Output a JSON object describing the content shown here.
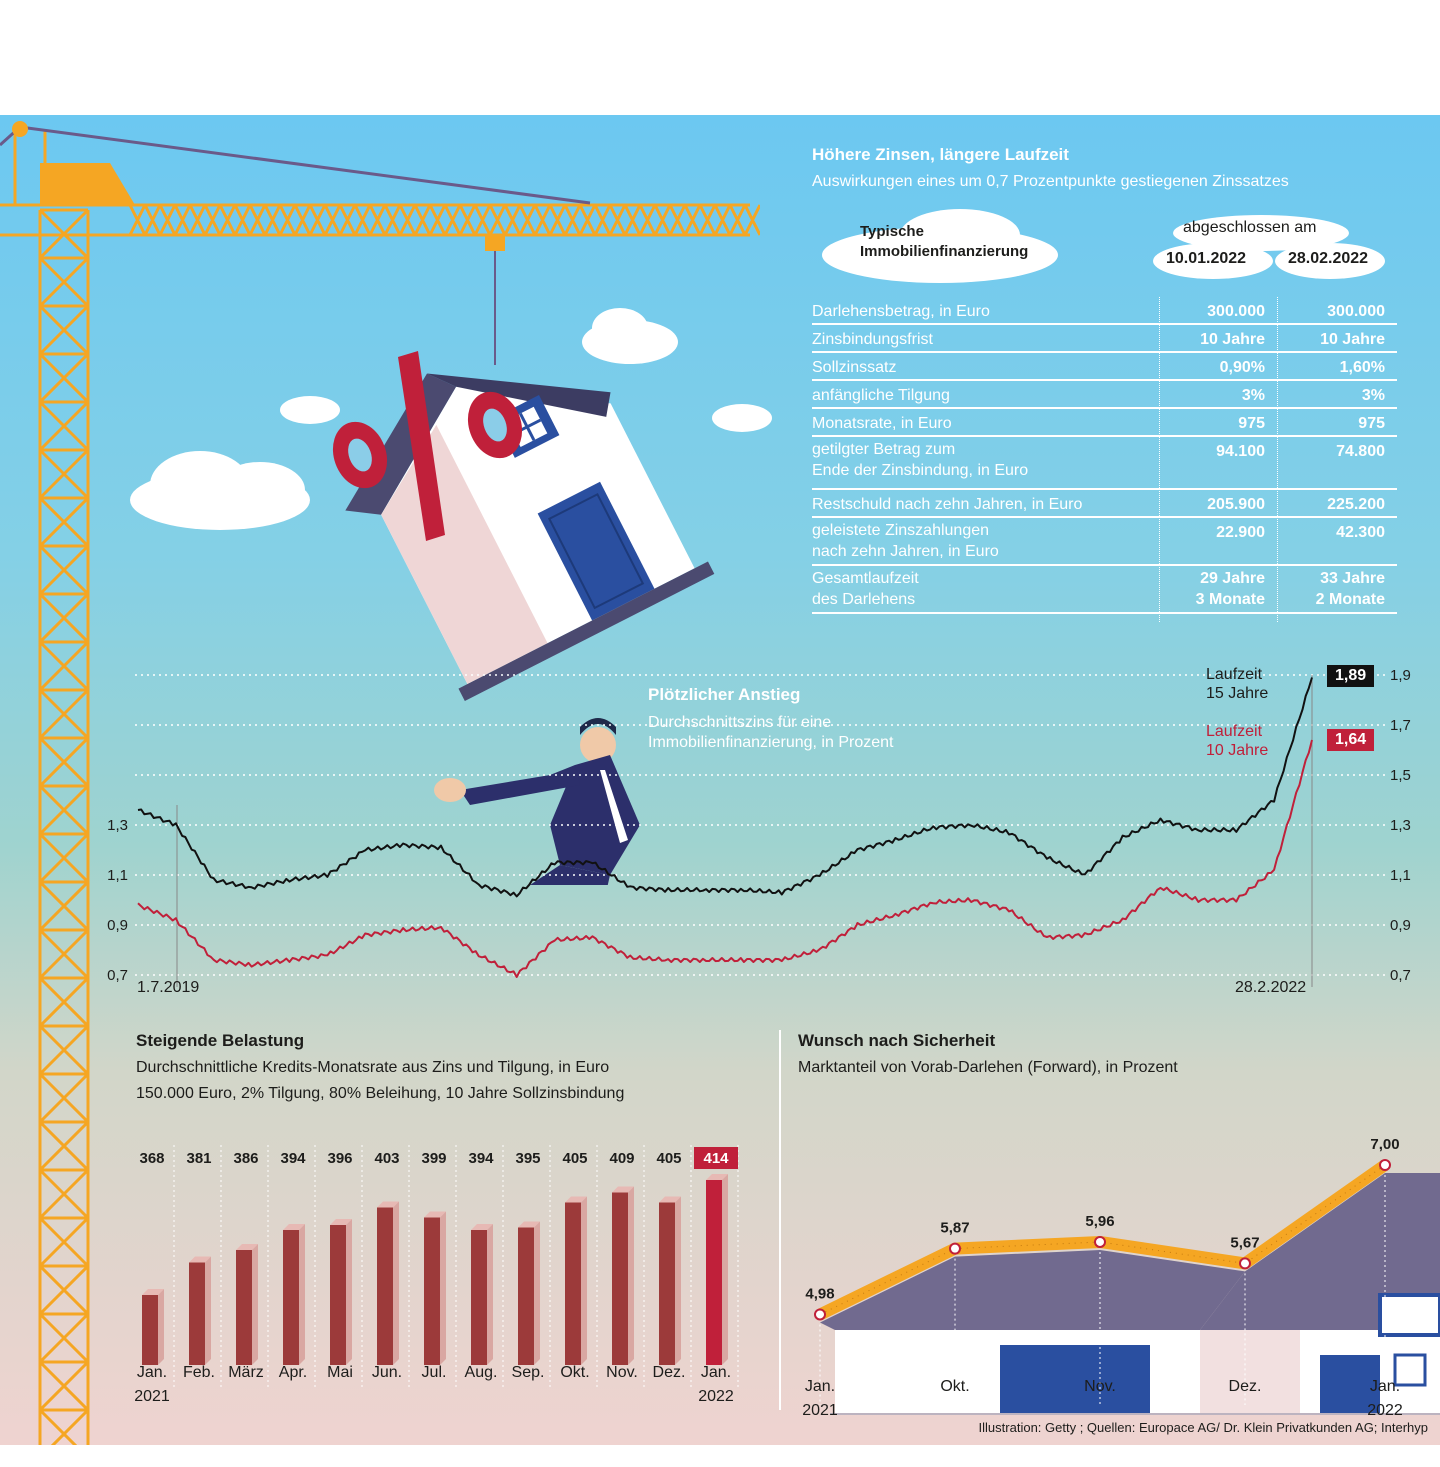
{
  "table": {
    "title": "Höhere Zinsen, längere Laufzeit",
    "subtitle": "Auswirkungen eines um 0,7 Prozentpunkte gestiegenen Zinssatzes",
    "cloud_label_line1": "Typische",
    "cloud_label_line2": "Immobilienfinanzierung",
    "concluded_label": "abgeschlossen am",
    "col1": "10.01.2022",
    "col2": "28.02.2022",
    "rows": [
      {
        "label": [
          "Darlehensbetrag, in Euro"
        ],
        "v1": [
          "300.000"
        ],
        "v2": [
          "300.000"
        ]
      },
      {
        "label": [
          "Zinsbindungsfrist"
        ],
        "v1": [
          "10 Jahre"
        ],
        "v2": [
          "10 Jahre"
        ]
      },
      {
        "label": [
          "Sollzinssatz"
        ],
        "v1": [
          "0,90%"
        ],
        "v2": [
          "1,60%"
        ]
      },
      {
        "label": [
          "anfängliche Tilgung"
        ],
        "v1": [
          "3%"
        ],
        "v2": [
          "3%"
        ]
      },
      {
        "label": [
          "Monatsrate, in Euro"
        ],
        "v1": [
          "975"
        ],
        "v2": [
          "975"
        ]
      },
      {
        "label": [
          "getilgter Betrag zum",
          "Ende der Zinsbindung, in Euro"
        ],
        "v1": [
          "94.100"
        ],
        "v2": [
          "74.800"
        ]
      },
      {
        "label": [
          "Restschuld nach zehn Jahren, in Euro"
        ],
        "v1": [
          "205.900"
        ],
        "v2": [
          "225.200"
        ]
      },
      {
        "label": [
          "geleistete Zinszahlungen",
          "nach zehn Jahren, in Euro"
        ],
        "v1": [
          "22.900"
        ],
        "v2": [
          "42.300"
        ]
      },
      {
        "label": [
          "Gesamtlaufzeit",
          "des Darlehens"
        ],
        "v1": [
          "29 Jahre",
          "3 Monate"
        ],
        "v2": [
          "33 Jahre",
          "2 Monate"
        ]
      }
    ]
  },
  "line_chart": {
    "title": "Plötzlicher Anstieg",
    "subtitle_line1": "Durchschnittszins für eine",
    "subtitle_line2": "Immobilienfinanzierung, in Prozent",
    "start_label": "1.7.2019",
    "end_label": "28.2.2022",
    "left_ticks": [
      "1,3",
      "1,1",
      "0,9",
      "0,7"
    ],
    "right_ticks": [
      "1,9",
      "1,7",
      "1,5",
      "1,3",
      "1,1",
      "0,9",
      "0,7"
    ],
    "s1_label_line1": "Laufzeit",
    "s1_label_line2": "15 Jahre",
    "s1_end": "1,89",
    "s2_label_line1": "Laufzeit",
    "s2_label_line2": "10 Jahre",
    "s2_end": "1,64"
  },
  "bar_chart": {
    "title": "Steigende Belastung",
    "subtitle_line1": "Durchschnittliche Kredits-Monatsrate aus Zins und Tilgung, in Euro",
    "subtitle_line2": "150.000 Euro, 2% Tilgung, 80% Beleihung, 10 Jahre Sollzinsbindung"
  },
  "forward_chart": {
    "title": "Wunsch nach Sicherheit",
    "subtitle": "Marktanteil von Vorab-Darlehen (Forward), in Prozent"
  },
  "source": "Illustration: Getty ; Quellen: Europace AG/ Dr. Klein Privatkunden AG; Interhyp",
  "percent_sign": "%",
  "colors": {
    "sky": "#6cc9f0",
    "teal": "#8fd0cc",
    "pink": "#ead3d3",
    "crane": "#f5a623",
    "red": "#c0203a",
    "navy": "#2c2f6b"
  },
  "chart_data": [
    {
      "type": "line",
      "title": "Plötzlicher Anstieg",
      "ylabel": "Durchschnittszins für eine Immobilienfinanzierung, in Prozent",
      "x": [
        "1.7.2019",
        "2019-08",
        "2019-09",
        "2019-10",
        "2019-11",
        "2019-12",
        "2020-01",
        "2020-02",
        "2020-03",
        "2020-04",
        "2020-05",
        "2020-06",
        "2020-07",
        "2020-08",
        "2020-09",
        "2020-10",
        "2020-11",
        "2020-12",
        "2021-01",
        "2021-02",
        "2021-03",
        "2021-04",
        "2021-05",
        "2021-06",
        "2021-07",
        "2021-08",
        "2021-09",
        "2021-10",
        "2021-11",
        "2021-12",
        "2022-01",
        "28.2.2022"
      ],
      "ylim": [
        0.7,
        1.9
      ],
      "series": [
        {
          "name": "Laufzeit 15 Jahre",
          "values": [
            1.36,
            1.3,
            1.08,
            1.05,
            1.08,
            1.1,
            1.2,
            1.22,
            1.21,
            1.06,
            1.02,
            1.15,
            1.15,
            1.05,
            1.04,
            1.04,
            1.04,
            1.03,
            1.1,
            1.2,
            1.24,
            1.29,
            1.3,
            1.27,
            1.17,
            1.1,
            1.25,
            1.32,
            1.28,
            1.28,
            1.4,
            1.89
          ]
        },
        {
          "name": "Laufzeit 10 Jahre",
          "values": [
            0.98,
            0.92,
            0.76,
            0.74,
            0.76,
            0.78,
            0.86,
            0.88,
            0.89,
            0.78,
            0.7,
            0.84,
            0.85,
            0.77,
            0.76,
            0.76,
            0.76,
            0.76,
            0.8,
            0.9,
            0.94,
            0.99,
            1.0,
            0.96,
            0.85,
            0.86,
            0.92,
            1.05,
            1.0,
            1.0,
            1.12,
            1.64
          ]
        }
      ]
    },
    {
      "type": "bar",
      "title": "Steigende Belastung",
      "categories": [
        [
          "Jan.",
          "2021"
        ],
        [
          "Feb."
        ],
        [
          "März"
        ],
        [
          "Apr."
        ],
        [
          "Mai"
        ],
        [
          "Jun."
        ],
        [
          "Jul."
        ],
        [
          "Aug."
        ],
        [
          "Sep."
        ],
        [
          "Okt."
        ],
        [
          "Nov."
        ],
        [
          "Dez."
        ],
        [
          "Jan.",
          "2022"
        ]
      ],
      "values": [
        368,
        381,
        386,
        394,
        396,
        403,
        399,
        394,
        395,
        405,
        409,
        405,
        414
      ],
      "labels": [
        "368",
        "381",
        "386",
        "394",
        "396",
        "403",
        "399",
        "394",
        "395",
        "405",
        "409",
        "405",
        "414"
      ],
      "ylim": [
        340,
        420
      ]
    },
    {
      "type": "line",
      "title": "Wunsch nach Sicherheit",
      "categories": [
        [
          "Jan.",
          "2021"
        ],
        [
          "Okt."
        ],
        [
          "Nov."
        ],
        [
          "Dez."
        ],
        [
          "Jan.",
          "2022"
        ]
      ],
      "values": [
        4.98,
        5.87,
        5.96,
        5.67,
        7.0
      ],
      "labels": [
        "4,98",
        "5,87",
        "5,96",
        "5,67",
        "7,00"
      ],
      "ylim": [
        4.5,
        7.0
      ]
    }
  ]
}
